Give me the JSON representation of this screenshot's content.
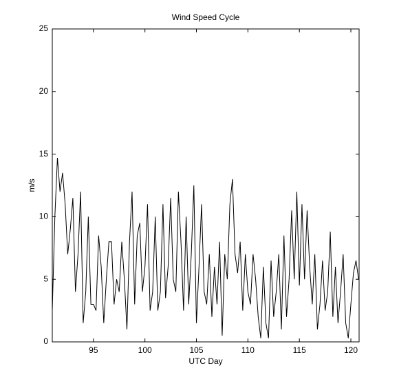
{
  "chart_data": {
    "type": "line",
    "title": "Wind Speed Cycle",
    "x_label": "UTC Day",
    "y_label": "m/s",
    "x": [
      91,
      91.25,
      91.5,
      91.75,
      92,
      92.25,
      92.5,
      92.75,
      93,
      93.25,
      93.5,
      93.75,
      94,
      94.25,
      94.5,
      94.75,
      95,
      95.25,
      95.5,
      95.75,
      96,
      96.25,
      96.5,
      96.75,
      97,
      97.25,
      97.5,
      97.75,
      98,
      98.25,
      98.5,
      98.75,
      99,
      99.25,
      99.5,
      99.75,
      100,
      100.25,
      100.5,
      100.75,
      101,
      101.25,
      101.5,
      101.75,
      102,
      102.25,
      102.5,
      102.75,
      103,
      103.25,
      103.5,
      103.75,
      104,
      104.25,
      104.5,
      104.75,
      105,
      105.25,
      105.5,
      105.75,
      106,
      106.25,
      106.5,
      106.75,
      107,
      107.25,
      107.5,
      107.75,
      108,
      108.25,
      108.5,
      108.75,
      109,
      109.25,
      109.5,
      109.75,
      110,
      110.25,
      110.5,
      110.75,
      111,
      111.25,
      111.5,
      111.75,
      112,
      112.25,
      112.5,
      112.75,
      113,
      113.25,
      113.5,
      113.75,
      114,
      114.25,
      114.5,
      114.75,
      115,
      115.25,
      115.5,
      115.75,
      116,
      116.25,
      116.5,
      116.75,
      117,
      117.25,
      117.5,
      117.75,
      118,
      118.25,
      118.5,
      118.75,
      119,
      119.25,
      119.5,
      119.75,
      120,
      120.25,
      120.5,
      120.75
    ],
    "values": [
      2.5,
      10,
      14.7,
      12,
      13.5,
      11,
      7,
      9,
      11.5,
      4,
      7,
      12,
      1.5,
      4,
      10,
      3,
      3,
      2.5,
      8.5,
      6,
      1.5,
      5,
      8,
      8,
      3,
      5,
      4,
      8,
      5,
      1,
      8,
      12,
      3,
      8.5,
      9.5,
      4,
      6,
      11,
      2.5,
      4,
      10,
      2.5,
      4,
      11,
      3.5,
      6,
      11.5,
      5,
      4,
      12,
      8,
      2.5,
      10,
      3,
      7,
      12.5,
      1.5,
      6,
      11,
      4,
      3,
      7,
      2,
      6,
      3,
      8,
      0.5,
      7,
      5,
      11,
      13,
      7,
      5.5,
      8,
      2.5,
      7,
      4,
      3,
      7,
      5,
      2,
      0.3,
      6,
      1.5,
      0.3,
      6.5,
      2,
      4,
      7,
      1,
      8.5,
      2,
      5,
      10.5,
      5,
      12,
      4.5,
      11,
      5,
      10.5,
      6,
      3,
      7,
      1,
      3,
      6.5,
      2.5,
      4,
      8.8,
      2,
      6,
      1.5,
      4,
      7,
      1.5,
      0.3,
      3,
      5.5,
      6.5,
      5
    ],
    "color": "#000000",
    "xlim": [
      91,
      120.8
    ],
    "ylim": [
      0,
      25
    ],
    "xticks": [
      95,
      100,
      105,
      110,
      115,
      120
    ],
    "yticks": [
      0,
      5,
      10,
      15,
      20,
      25
    ]
  }
}
